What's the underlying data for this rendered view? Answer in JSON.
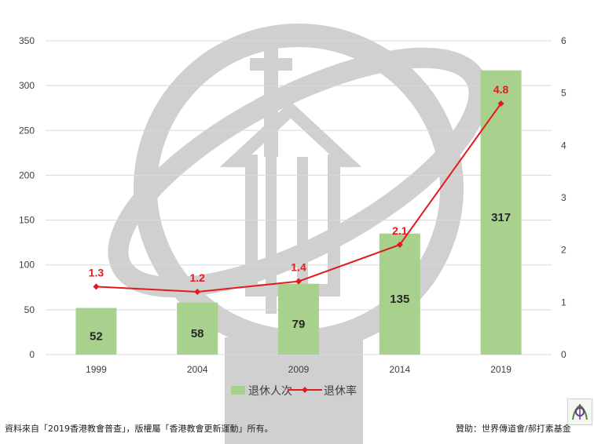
{
  "chart_data": {
    "type": "bar",
    "categories": [
      "1999",
      "2004",
      "2009",
      "2014",
      "2019"
    ],
    "series": [
      {
        "name": "退休人次",
        "type": "bar",
        "axis": "left",
        "color": "#a9d18e",
        "values": [
          52,
          58,
          79,
          135,
          317
        ]
      },
      {
        "name": "退休率",
        "type": "line",
        "axis": "right",
        "color": "#e41a1c",
        "values": [
          1.3,
          1.2,
          1.4,
          2.1,
          4.8
        ]
      }
    ],
    "y_left": {
      "min": 0,
      "max": 350,
      "step": 50,
      "ticks": [
        "0",
        "50",
        "100",
        "150",
        "200",
        "250",
        "300",
        "350"
      ]
    },
    "y_right": {
      "min": 0,
      "max": 6,
      "step": 1,
      "ticks": [
        "0",
        "1",
        "2",
        "3",
        "4",
        "5",
        "6"
      ]
    },
    "bar_labels": [
      "52",
      "58",
      "79",
      "135",
      "317"
    ],
    "line_labels": [
      "1.3",
      "1.2",
      "1.4",
      "2.1",
      "4.8"
    ],
    "grid": true,
    "legend_position": "bottom"
  },
  "legend": {
    "bar_label": "退休人次",
    "line_label": "退休率"
  },
  "footer": {
    "source": "資料來自「2019香港教會普查」，版權屬「香港教會更新運動」所有。",
    "sponsor": "贊助：世界傳道會/郝打素基金"
  },
  "colors": {
    "bar": "#a9d18e",
    "line": "#e41a1c",
    "grid": "#d9d9d9",
    "watermark": "#d0d0d0"
  },
  "icons": {
    "watermark": "church-watermark-icon",
    "logo": "sponsor-logo-icon"
  }
}
